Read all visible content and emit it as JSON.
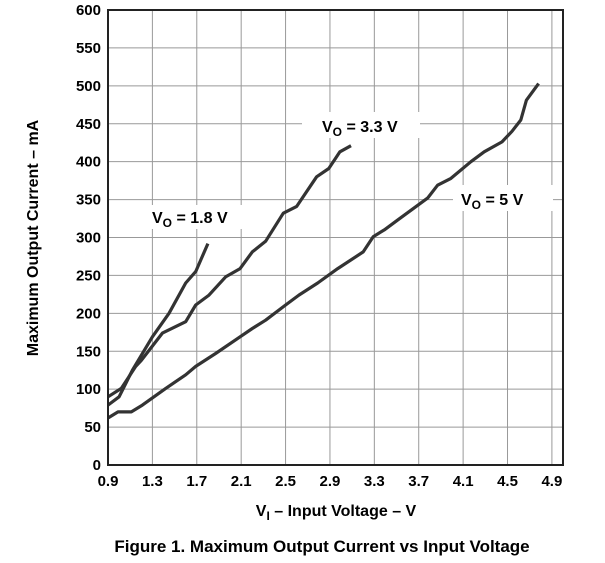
{
  "chart_data": {
    "type": "line",
    "title": "Figure 1. Maximum Output Current vs Input Voltage",
    "xlabel": {
      "main": "V",
      "sub": "I",
      "rest": " – Input Voltage – V"
    },
    "ylabel": "Maximum Output Current – mA",
    "xlim": [
      0.9,
      5.0
    ],
    "ylim": [
      0,
      600
    ],
    "xticks": [
      0.9,
      1.3,
      1.7,
      2.1,
      2.5,
      2.9,
      3.3,
      3.7,
      4.1,
      4.5,
      4.9
    ],
    "xtick_labels": [
      "0.9",
      "1.3",
      "1.7",
      "2.1",
      "2.5",
      "2.9",
      "3.3",
      "3.7",
      "4.1",
      "4.5",
      "4.9"
    ],
    "yticks": [
      0,
      50,
      100,
      150,
      200,
      250,
      300,
      350,
      400,
      450,
      500,
      550,
      600
    ],
    "ytick_labels": [
      "0",
      "50",
      "100",
      "150",
      "200",
      "250",
      "300",
      "350",
      "400",
      "450",
      "500",
      "550",
      "600"
    ],
    "grid": true,
    "line_color": "#333333",
    "series": [
      {
        "name": "VO = 1.8 V",
        "label": {
          "main": "V",
          "sub": "O",
          "rest": " = 1.8 V"
        },
        "x": [
          0.9,
          1.0,
          1.12,
          1.3,
          1.45,
          1.6,
          1.69,
          1.8
        ],
        "y": [
          79,
          90,
          125,
          169,
          200,
          240,
          255,
          292
        ]
      },
      {
        "name": "VO = 3.3 V",
        "label": {
          "main": "V",
          "sub": "O",
          "rest": " = 3.3 V"
        },
        "x": [
          0.9,
          1.02,
          1.15,
          1.2,
          1.39,
          1.6,
          1.69,
          1.81,
          1.96,
          2.09,
          2.2,
          2.32,
          2.48,
          2.6,
          2.78,
          2.89,
          2.99,
          3.09
        ],
        "y": [
          90,
          101,
          130,
          138,
          174,
          189,
          211,
          224,
          248,
          259,
          281,
          295,
          332,
          341,
          380,
          391,
          413,
          421
        ]
      },
      {
        "name": "VO = 5 V",
        "label": {
          "main": "V",
          "sub": "O",
          "rest": " = 5 V"
        },
        "x": [
          0.9,
          0.99,
          1.11,
          1.21,
          1.42,
          1.6,
          1.69,
          1.87,
          2.09,
          2.2,
          2.32,
          2.5,
          2.62,
          2.79,
          2.97,
          3.2,
          3.29,
          3.39,
          3.51,
          3.78,
          3.87,
          3.99,
          4.17,
          4.29,
          4.45,
          4.54,
          4.62,
          4.67,
          4.78
        ],
        "y": [
          62,
          70,
          70,
          79,
          101,
          119,
          130,
          147,
          169,
          180,
          191,
          211,
          224,
          240,
          259,
          281,
          301,
          310,
          323,
          352,
          369,
          378,
          400,
          413,
          426,
          440,
          455,
          481,
          503
        ]
      }
    ]
  }
}
